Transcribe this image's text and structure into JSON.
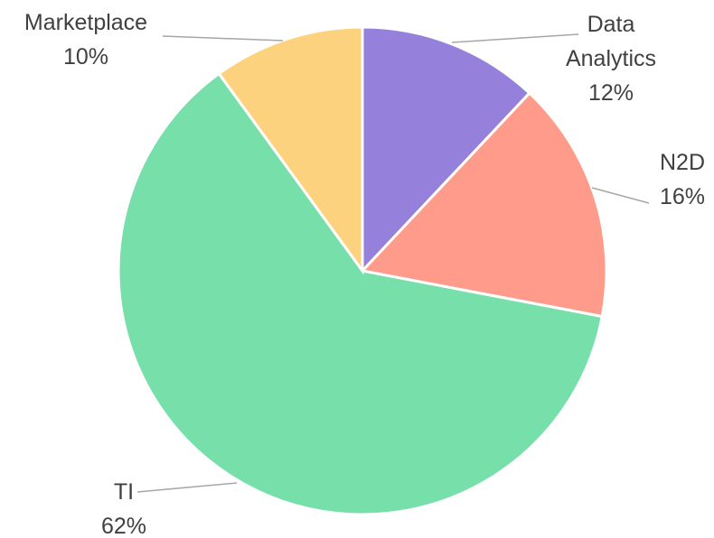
{
  "chart_data": {
    "type": "pie",
    "categories": [
      "Data Analytics",
      "N2D",
      "TI",
      "Marketplace"
    ],
    "values": [
      12,
      16,
      62,
      10
    ],
    "value_labels": [
      "12%",
      "16%",
      "62%",
      "10%"
    ],
    "colors": [
      "#9580db",
      "#ff9b8a",
      "#77dfaa",
      "#fdd27f"
    ]
  }
}
